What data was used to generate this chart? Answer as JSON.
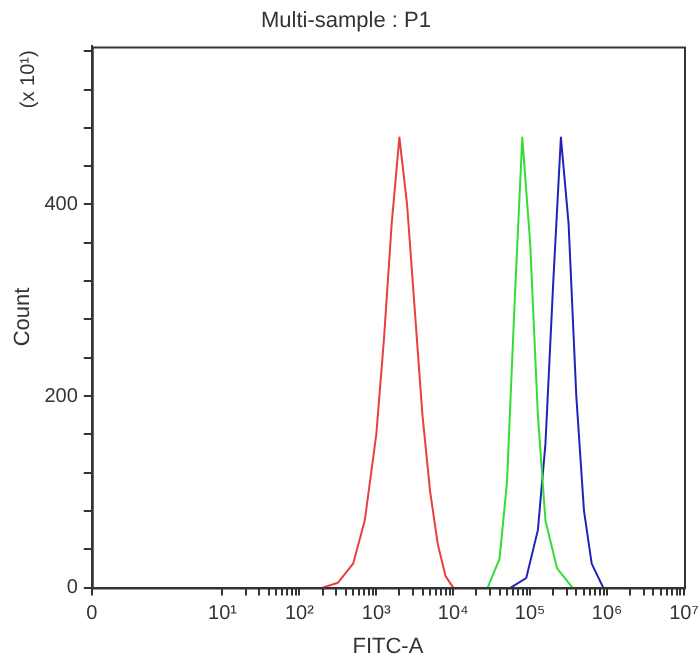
{
  "chart_data": {
    "type": "line",
    "title": "Multi-sample : P1",
    "xlabel": "FITC-A",
    "ylabel": "Count",
    "annotations": [
      "(x 10¹)"
    ],
    "log": "x",
    "grid": false,
    "legend": false,
    "marker": "none",
    "line_style": "solid",
    "xlim": [
      0.2,
      10000000
    ],
    "xticks": [
      {
        "value": 0.2,
        "label": "0"
      },
      {
        "value": 10,
        "label": "10¹"
      },
      {
        "value": 100,
        "label": "10²"
      },
      {
        "value": 1000,
        "label": "10³"
      },
      {
        "value": 10000,
        "label": "10⁴"
      },
      {
        "value": 100000,
        "label": "10⁵"
      },
      {
        "value": 1000000,
        "label": "10⁶"
      },
      {
        "value": 10000000,
        "label": "10⁷"
      },
      {
        "value": 20,
        "label": null
      },
      {
        "value": 30,
        "label": null
      },
      {
        "value": 40,
        "label": null
      },
      {
        "value": 50,
        "label": null
      },
      {
        "value": 60,
        "label": null
      },
      {
        "value": 70,
        "label": null
      },
      {
        "value": 80,
        "label": null
      },
      {
        "value": 90,
        "label": null
      },
      {
        "value": 200,
        "label": null
      },
      {
        "value": 300,
        "label": null
      },
      {
        "value": 400,
        "label": null
      },
      {
        "value": 500,
        "label": null
      },
      {
        "value": 600,
        "label": null
      },
      {
        "value": 700,
        "label": null
      },
      {
        "value": 800,
        "label": null
      },
      {
        "value": 900,
        "label": null
      },
      {
        "value": 2000,
        "label": null
      },
      {
        "value": 3000,
        "label": null
      },
      {
        "value": 4000,
        "label": null
      },
      {
        "value": 5000,
        "label": null
      },
      {
        "value": 6000,
        "label": null
      },
      {
        "value": 7000,
        "label": null
      },
      {
        "value": 8000,
        "label": null
      },
      {
        "value": 9000,
        "label": null
      },
      {
        "value": 20000,
        "label": null
      },
      {
        "value": 30000,
        "label": null
      },
      {
        "value": 40000,
        "label": null
      },
      {
        "value": 50000,
        "label": null
      },
      {
        "value": 60000,
        "label": null
      },
      {
        "value": 70000,
        "label": null
      },
      {
        "value": 80000,
        "label": null
      },
      {
        "value": 90000,
        "label": null
      },
      {
        "value": 200000,
        "label": null
      },
      {
        "value": 300000,
        "label": null
      },
      {
        "value": 400000,
        "label": null
      },
      {
        "value": 500000,
        "label": null
      },
      {
        "value": 600000,
        "label": null
      },
      {
        "value": 700000,
        "label": null
      },
      {
        "value": 800000,
        "label": null
      },
      {
        "value": 900000,
        "label": null
      },
      {
        "value": 2000000,
        "label": null
      },
      {
        "value": 3000000,
        "label": null
      },
      {
        "value": 4000000,
        "label": null
      },
      {
        "value": 5000000,
        "label": null
      },
      {
        "value": 6000000,
        "label": null
      },
      {
        "value": 7000000,
        "label": null
      },
      {
        "value": 8000000,
        "label": null
      },
      {
        "value": 9000000,
        "label": null
      }
    ],
    "ylim": [
      0,
      565
    ],
    "yticks": [
      0,
      {
        "value": 40,
        "label": null
      },
      {
        "value": 80,
        "label": null
      },
      {
        "value": 120,
        "label": null
      },
      {
        "value": 160,
        "label": null
      },
      200,
      {
        "value": 240,
        "label": null
      },
      {
        "value": 280,
        "label": null
      },
      {
        "value": 320,
        "label": null
      },
      {
        "value": 360,
        "label": null
      },
      400,
      {
        "value": 440,
        "label": null
      },
      {
        "value": 480,
        "label": null
      },
      {
        "value": 520,
        "label": null
      },
      {
        "value": 560,
        "label": null
      }
    ],
    "series": [
      {
        "color": "#e8403f",
        "x": [
          200,
          316,
          500,
          708,
          1000,
          1259,
          1585,
          1995,
          2512,
          3162,
          3981,
          5012,
          6310,
          7943,
          10000
        ],
        "values": [
          0,
          5,
          25,
          70,
          160,
          260,
          380,
          470,
          400,
          290,
          180,
          100,
          45,
          12,
          0
        ]
      },
      {
        "color": "#33dd33",
        "x": [
          28000,
          40000,
          50000,
          63000,
          79000,
          100000,
          126000,
          158000,
          224000,
          355000
        ],
        "values": [
          0,
          30,
          110,
          300,
          470,
          360,
          180,
          70,
          20,
          0
        ]
      },
      {
        "color": "#2222bb",
        "x": [
          56000,
          89000,
          126000,
          158000,
          200000,
          251000,
          316000,
          398000,
          501000,
          631000,
          891000
        ],
        "values": [
          0,
          10,
          60,
          150,
          320,
          470,
          380,
          200,
          80,
          25,
          0
        ]
      }
    ]
  }
}
